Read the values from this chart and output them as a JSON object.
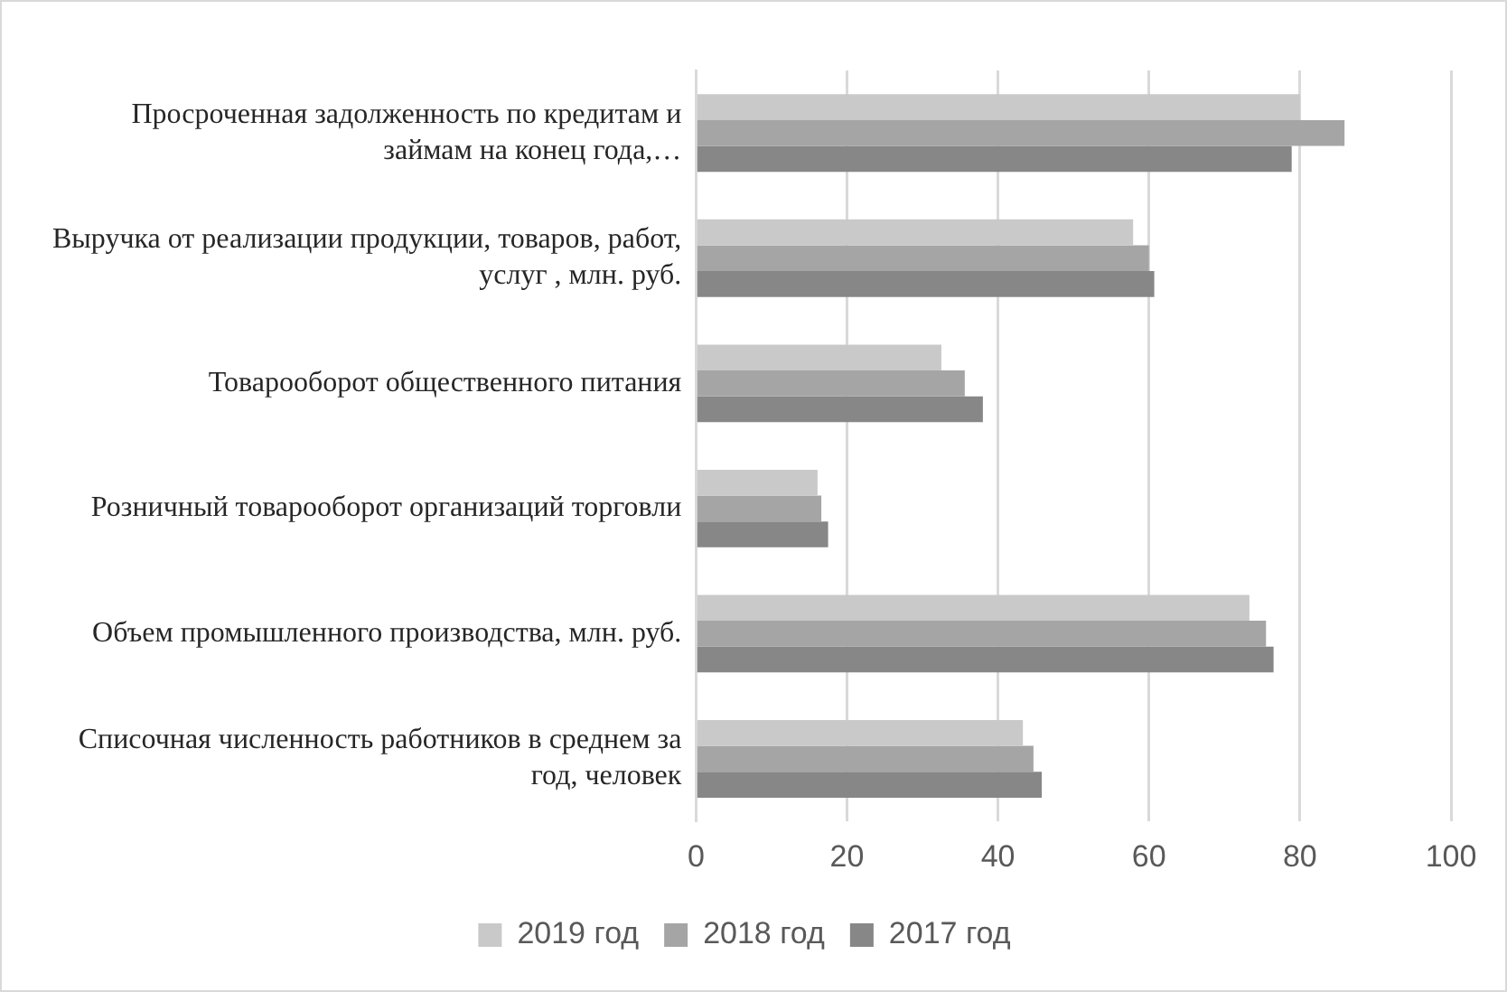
{
  "chart_data": {
    "type": "bar",
    "orientation": "horizontal",
    "categories": [
      "Просроченная задолженность по кредитам и займам на конец года,…",
      "Выручка от реализации продукции, товаров, работ, услуг , млн. руб.",
      "Товарооборот общественного питания",
      "Розничный товарооборот организаций торговли",
      "Объем промышленного производства, млн. руб.",
      "Списочная численность работников в среднем за год, человек"
    ],
    "series": [
      {
        "name": "2019 год",
        "color": "#c9c9c9",
        "values": [
          80.0,
          57.9,
          32.5,
          16.1,
          73.3,
          43.3
        ]
      },
      {
        "name": "2018 год",
        "color": "#a5a5a5",
        "values": [
          85.9,
          60.0,
          35.6,
          16.6,
          75.5,
          44.7
        ]
      },
      {
        "name": "2017 год",
        "color": "#878787",
        "values": [
          78.9,
          60.7,
          38.0,
          17.5,
          76.5,
          45.8
        ]
      }
    ],
    "xlim": [
      0,
      100
    ],
    "xticks": [
      0,
      20,
      40,
      60,
      80,
      100
    ],
    "grid": "x",
    "legend": "bottom"
  }
}
